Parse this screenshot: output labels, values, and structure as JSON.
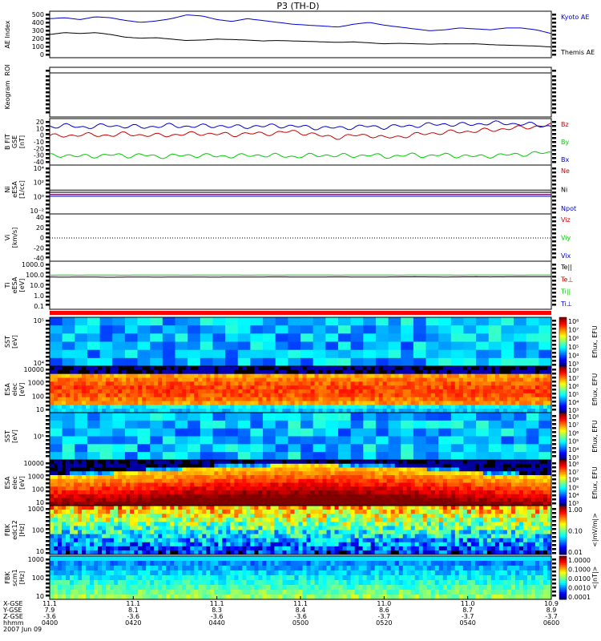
{
  "chart_data": {
    "type": "line",
    "title": "P3 (TH-D)",
    "panels": [
      {
        "key": "ae",
        "ylabel": [
          "AE Index"
        ],
        "yticks": [
          "500",
          "400",
          "300",
          "200",
          "100",
          "0"
        ],
        "ylim": [
          0,
          500
        ],
        "series": [
          {
            "name": "Kyoto AE",
            "color": "#0000cc",
            "values": [
              420,
              430,
              410,
              440,
              430,
              400,
              380,
              395,
              420,
              460,
              450,
              410,
              390,
              420,
              400,
              380,
              360,
              350,
              340,
              330,
              360,
              380,
              350,
              330,
              310,
              290,
              300,
              320,
              310,
              300,
              320,
              320,
              300,
              260
            ]
          },
          {
            "name": "Themis AE",
            "color": "#000000",
            "values": [
              250,
              270,
              260,
              270,
              250,
              220,
              210,
              215,
              200,
              185,
              190,
              200,
              195,
              190,
              180,
              185,
              180,
              175,
              170,
              165,
              170,
              160,
              150,
              155,
              150,
              145,
              150,
              148,
              150,
              140,
              135,
              130,
              125,
              115
            ]
          }
        ]
      },
      {
        "key": "roi",
        "ylabel": [
          "ROI"
        ],
        "yticks": []
      },
      {
        "key": "keogram",
        "ylabel": [
          "Keogram"
        ],
        "yticks": []
      },
      {
        "key": "bfit",
        "ylabel": [
          "B FIT",
          "GSE",
          "[nT]"
        ],
        "yticks": [
          "20",
          "10",
          "0",
          "-10",
          "-20",
          "-30",
          "-40"
        ],
        "ylim": [
          -40,
          20
        ],
        "series": [
          {
            "name": "Bz",
            "color": "#cc0000",
            "values": [
              -2,
              -3,
              0,
              -2,
              -1,
              0,
              -1,
              -2,
              -1,
              0,
              1,
              0,
              -1,
              1,
              0,
              2,
              3,
              1,
              -3,
              -4,
              -2,
              -1,
              -5,
              -3,
              -1,
              1,
              2,
              3,
              4,
              5,
              7,
              8,
              10,
              12
            ]
          },
          {
            "name": "By",
            "color": "#00cc00",
            "values": [
              -28,
              -27,
              -29,
              -28,
              -27,
              -28,
              -27,
              -29,
              -28,
              -28,
              -27,
              -29,
              -28,
              -28,
              -27,
              -28,
              -29,
              -28,
              -27,
              -28,
              -28,
              -27,
              -29,
              -28,
              -27,
              -28,
              -27,
              -28,
              -29,
              -28,
              -27,
              -26,
              -25,
              -24
            ]
          },
          {
            "name": "Bx",
            "color": "#0000cc",
            "values": [
              10,
              11,
              9,
              10,
              11,
              10,
              9,
              10,
              11,
              10,
              10,
              11,
              9,
              10,
              10,
              11,
              10,
              9,
              8,
              8,
              9,
              10,
              9,
              10,
              11,
              12,
              13,
              12,
              13,
              14,
              14,
              13,
              12,
              10
            ]
          }
        ]
      },
      {
        "key": "ni",
        "ylabel": [
          "Ni",
          "eESA",
          "[1/cc]"
        ],
        "yticks": [
          "10⁴",
          "10²",
          "10⁰",
          "10⁻²"
        ],
        "ylim": [
          -3,
          5
        ],
        "logscale": true,
        "series": [
          {
            "name": "Ne",
            "color": "#cc0000",
            "values": [
              0.55,
              0.55,
              0.55,
              0.55,
              0.55,
              0.55,
              0.55,
              0.55,
              0.55,
              0.55,
              0.55,
              0.55,
              0.55,
              0.55,
              0.55,
              0.55,
              0.55,
              0.55,
              0.55,
              0.55,
              0.55,
              0.55,
              0.55,
              0.55,
              0.55,
              0.55,
              0.55,
              0.55,
              0.55,
              0.55,
              0.55,
              0.55,
              0.55,
              0.55
            ]
          },
          {
            "name": "Ni",
            "color": "#000000",
            "values": [
              0.9,
              0.9,
              0.9,
              0.9,
              0.9,
              0.9,
              0.9,
              0.9,
              0.9,
              0.9,
              0.9,
              0.9,
              0.9,
              0.9,
              0.9,
              0.9,
              0.9,
              0.9,
              0.9,
              0.9,
              0.9,
              0.9,
              0.9,
              0.9,
              0.9,
              0.9,
              0.9,
              0.9,
              0.9,
              0.9,
              0.9,
              0.9,
              0.9,
              0.9
            ]
          },
          {
            "name": "Npot",
            "color": "#0000cc",
            "values": [
              0.2,
              0.2,
              0.2,
              0.2,
              0.2,
              0.2,
              0.2,
              0.2,
              0.2,
              0.2,
              0.2,
              0.2,
              0.2,
              0.2,
              0.2,
              0.2,
              0.2,
              0.2,
              0.2,
              0.2,
              0.2,
              0.2,
              0.2,
              0.2,
              0.2,
              0.2,
              0.2,
              0.2,
              0.2,
              0.2,
              0.2,
              0.2,
              0.2,
              0.2
            ]
          }
        ]
      },
      {
        "key": "vi",
        "ylabel": [
          "Vi",
          "[km/s]"
        ],
        "yticks": [
          "40",
          "20",
          "0",
          "-20",
          "-40"
        ],
        "ylim": [
          -60,
          60
        ],
        "legend_only": [
          "Viz",
          "Viy",
          "Vix"
        ],
        "legend_colors": [
          "#cc0000",
          "#00cc00",
          "#0000cc"
        ]
      },
      {
        "key": "ti",
        "ylabel": [
          "Ti",
          "eESA",
          "[eV]"
        ],
        "yticks": [
          "1000.0",
          "100.0",
          "10.0",
          "1.0",
          "0.1"
        ],
        "ylim": [
          -1.5,
          3.5
        ],
        "logscale": true,
        "series": [
          {
            "name": "Te||",
            "color": "#000000",
            "values": [
              1.85,
              1.84,
              1.86,
              1.85,
              1.83,
              1.85,
              1.86,
              1.84,
              1.85,
              1.86,
              1.85,
              1.84,
              1.86,
              1.85,
              1.86,
              1.87,
              1.86,
              1.85,
              1.86,
              1.87,
              1.86,
              1.85,
              1.86,
              1.87,
              1.88,
              1.87,
              1.86,
              1.87,
              1.88,
              1.87,
              1.88,
              1.88,
              1.88,
              1.88
            ]
          },
          {
            "name": "Te⊥",
            "color": "#cc0000",
            "values": []
          },
          {
            "name": "Ti||",
            "color": "#00cc00",
            "values": [
              2.05,
              2.06,
              2.05,
              2.07,
              2.06,
              2.05,
              2.06,
              2.07,
              2.06,
              2.05,
              2.06,
              2.07,
              2.06,
              2.05,
              2.06,
              2.05,
              2.06,
              2.07,
              2.06,
              2.05,
              2.06,
              2.07,
              2.06,
              2.05,
              2.06,
              2.07,
              2.06,
              2.05,
              2.06,
              2.07,
              2.06,
              2.05,
              2.06,
              2.06
            ]
          },
          {
            "name": "Ti⊥",
            "color": "#0000cc",
            "values": []
          }
        ]
      }
    ],
    "spectra": [
      {
        "key": "sst-e",
        "ylabel": [
          "SST",
          "[eV]"
        ],
        "yticks": [
          "10⁵",
          "10⁴"
        ],
        "colorbar_title": "Eflux, EFU",
        "colorbar_ticks": [
          "10⁸",
          "10⁷",
          "10⁶",
          "10⁵",
          "10⁴",
          "10³"
        ]
      },
      {
        "key": "esa-e",
        "ylabel": [
          "ESA",
          "elec",
          "[eV]"
        ],
        "yticks": [
          "10000",
          "1000",
          "100",
          "10"
        ],
        "colorbar_title": "Eflux, EFU",
        "colorbar_ticks": [
          "10⁸",
          "10⁷",
          "10⁶",
          "10⁵",
          "10⁴",
          "10³"
        ]
      },
      {
        "key": "sst-i",
        "ylabel": [
          "SST",
          "[eV]"
        ],
        "yticks": [
          "10⁵"
        ],
        "colorbar_title": "Eflux, EFU",
        "colorbar_ticks": [
          "10⁸",
          "10⁷",
          "10⁶",
          "10⁵",
          "10⁴",
          "10³"
        ]
      },
      {
        "key": "esa-i",
        "ylabel": [
          "ESA",
          "elec",
          "[eV]"
        ],
        "yticks": [
          "10000",
          "1000",
          "100",
          "10"
        ],
        "colorbar_title": "Eflux, EFU",
        "colorbar_ticks": [
          "10⁸",
          "10⁷",
          "10⁶",
          "10⁵",
          "10⁴",
          "10³"
        ]
      },
      {
        "key": "fbk-e",
        "ylabel": [
          "FBK",
          "edc12",
          "[Hz]"
        ],
        "yticks": [
          "1000",
          "100",
          "10"
        ],
        "colorbar_title": "<|mV/m|>",
        "colorbar_ticks": [
          "1.00",
          "0.10",
          "0.01"
        ]
      },
      {
        "key": "fbk-b",
        "ylabel": [
          "FBK",
          "scm1",
          "[Hz]"
        ],
        "yticks": [
          "1000",
          "100",
          "10"
        ],
        "colorbar_title": "<|nT|>",
        "colorbar_ticks": [
          "1.0000",
          "0.1000",
          "0.0100",
          "0.0010",
          "0.0001"
        ]
      }
    ],
    "x_axis": {
      "row_labels": [
        "X-GSE",
        "Y-GSE",
        "Z-GSE",
        "hhmm",
        "2007 Jun 09"
      ],
      "ticks": [
        {
          "x": "11.1",
          "y": "7.9",
          "z": "-3.6",
          "t": "0400"
        },
        {
          "x": "11.1",
          "y": "8.1",
          "z": "-3.6",
          "t": "0420"
        },
        {
          "x": "11.1",
          "y": "8.3",
          "z": "-3.6",
          "t": "0440"
        },
        {
          "x": "11.1",
          "y": "8.4",
          "z": "-3.6",
          "t": "0500"
        },
        {
          "x": "11.0",
          "y": "8.6",
          "z": "-3.7",
          "t": "0520"
        },
        {
          "x": "11.0",
          "y": "8.7",
          "z": "-3.7",
          "t": "0540"
        },
        {
          "x": "10.9",
          "y": "8.9",
          "z": "-3.7",
          "t": "0600"
        }
      ]
    }
  }
}
